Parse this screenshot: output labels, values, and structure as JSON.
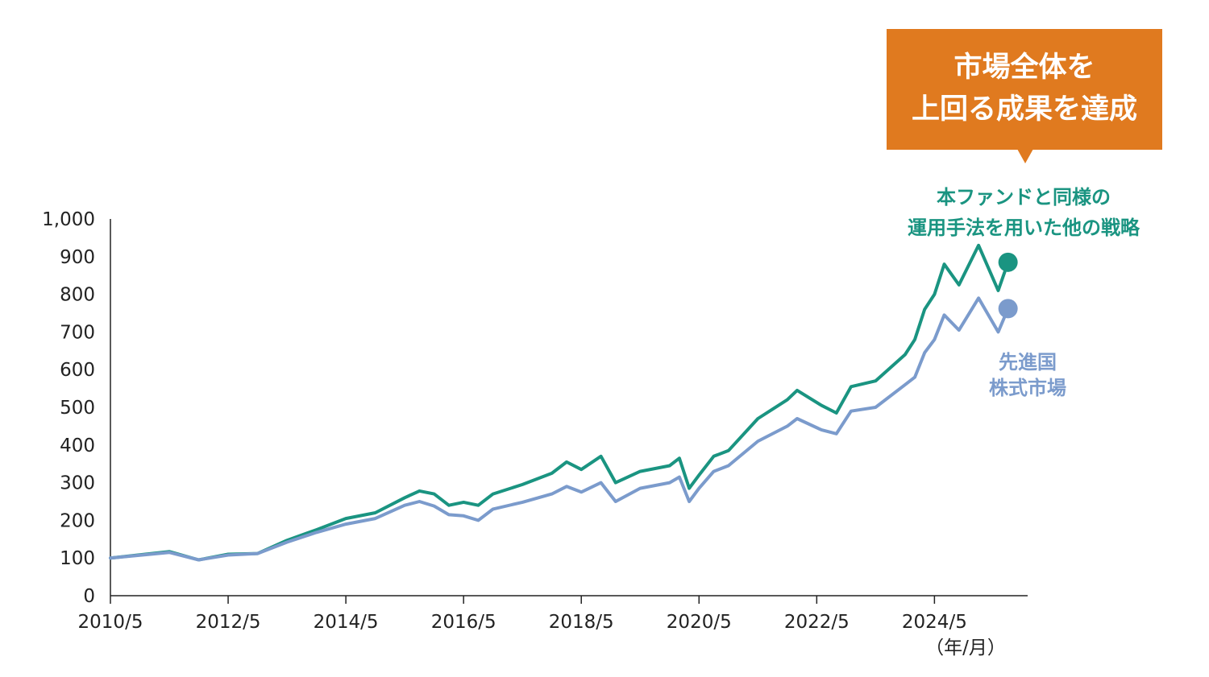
{
  "callout": {
    "line1": "市場全体を",
    "line2": "上回る成果を達成"
  },
  "labels": {
    "fund_line1": "本ファンドと同様の",
    "fund_line2": "運用手法を用いた他の戦略",
    "market_line1": "先進国",
    "market_line2": "株式市場"
  },
  "colors": {
    "fund": "#1a9481",
    "market": "#7b9bcc",
    "callout": "#e07a1f",
    "axis": "#222222"
  },
  "chart_data": {
    "type": "line",
    "xlabel": "（年/月）",
    "ylabel": "",
    "ylim": [
      0,
      1000
    ],
    "yticks": [
      0,
      100,
      200,
      300,
      400,
      500,
      600,
      700,
      800,
      900,
      1000
    ],
    "ytick_labels": [
      "0",
      "100",
      "200",
      "300",
      "400",
      "500",
      "600",
      "700",
      "800",
      "900",
      "1,000"
    ],
    "xticks": [
      "2010/5",
      "2012/5",
      "2014/5",
      "2016/5",
      "2018/5",
      "2020/5",
      "2022/5",
      "2024/5"
    ],
    "start": "2010/5",
    "end": "2025/12",
    "series": [
      {
        "name": "本ファンドと同様の運用手法を用いた他の戦略",
        "color": "#1a9481",
        "points": [
          [
            "2010/5",
            100
          ],
          [
            "2011/5",
            117
          ],
          [
            "2011/11",
            95
          ],
          [
            "2012/5",
            110
          ],
          [
            "2012/11",
            112
          ],
          [
            "2013/5",
            147
          ],
          [
            "2013/11",
            175
          ],
          [
            "2014/5",
            205
          ],
          [
            "2014/11",
            220
          ],
          [
            "2015/5",
            260
          ],
          [
            "2015/8",
            278
          ],
          [
            "2015/11",
            270
          ],
          [
            "2016/2",
            240
          ],
          [
            "2016/5",
            248
          ],
          [
            "2016/8",
            240
          ],
          [
            "2016/11",
            270
          ],
          [
            "2017/5",
            295
          ],
          [
            "2017/11",
            325
          ],
          [
            "2018/2",
            355
          ],
          [
            "2018/5",
            335
          ],
          [
            "2018/9",
            370
          ],
          [
            "2018/12",
            300
          ],
          [
            "2019/5",
            330
          ],
          [
            "2019/11",
            345
          ],
          [
            "2020/1",
            365
          ],
          [
            "2020/3",
            285
          ],
          [
            "2020/5",
            320
          ],
          [
            "2020/8",
            370
          ],
          [
            "2020/11",
            385
          ],
          [
            "2021/5",
            470
          ],
          [
            "2021/11",
            520
          ],
          [
            "2022/1",
            545
          ],
          [
            "2022/6",
            505
          ],
          [
            "2022/9",
            485
          ],
          [
            "2022/12",
            555
          ],
          [
            "2023/5",
            570
          ],
          [
            "2023/11",
            640
          ],
          [
            "2024/1",
            680
          ],
          [
            "2024/3",
            760
          ],
          [
            "2024/5",
            800
          ],
          [
            "2024/7",
            880
          ],
          [
            "2024/10",
            825
          ],
          [
            "2025/2",
            930
          ],
          [
            "2025/6",
            810
          ],
          [
            "2025/8",
            885
          ]
        ]
      },
      {
        "name": "先進国株式市場",
        "color": "#7b9bcc",
        "points": [
          [
            "2010/5",
            100
          ],
          [
            "2011/5",
            115
          ],
          [
            "2011/11",
            95
          ],
          [
            "2012/5",
            108
          ],
          [
            "2012/11",
            112
          ],
          [
            "2013/5",
            142
          ],
          [
            "2013/11",
            168
          ],
          [
            "2014/5",
            190
          ],
          [
            "2014/11",
            205
          ],
          [
            "2015/5",
            240
          ],
          [
            "2015/8",
            250
          ],
          [
            "2015/11",
            238
          ],
          [
            "2016/2",
            215
          ],
          [
            "2016/5",
            212
          ],
          [
            "2016/8",
            200
          ],
          [
            "2016/11",
            230
          ],
          [
            "2017/5",
            248
          ],
          [
            "2017/11",
            270
          ],
          [
            "2018/2",
            290
          ],
          [
            "2018/5",
            275
          ],
          [
            "2018/9",
            300
          ],
          [
            "2018/12",
            250
          ],
          [
            "2019/5",
            285
          ],
          [
            "2019/11",
            300
          ],
          [
            "2020/1",
            315
          ],
          [
            "2020/3",
            250
          ],
          [
            "2020/5",
            285
          ],
          [
            "2020/8",
            330
          ],
          [
            "2020/11",
            345
          ],
          [
            "2021/5",
            410
          ],
          [
            "2021/11",
            450
          ],
          [
            "2022/1",
            470
          ],
          [
            "2022/6",
            440
          ],
          [
            "2022/9",
            430
          ],
          [
            "2022/12",
            490
          ],
          [
            "2023/5",
            500
          ],
          [
            "2023/11",
            560
          ],
          [
            "2024/1",
            580
          ],
          [
            "2024/3",
            645
          ],
          [
            "2024/5",
            680
          ],
          [
            "2024/7",
            745
          ],
          [
            "2024/10",
            705
          ],
          [
            "2025/2",
            790
          ],
          [
            "2025/6",
            700
          ],
          [
            "2025/8",
            762
          ]
        ]
      }
    ]
  }
}
